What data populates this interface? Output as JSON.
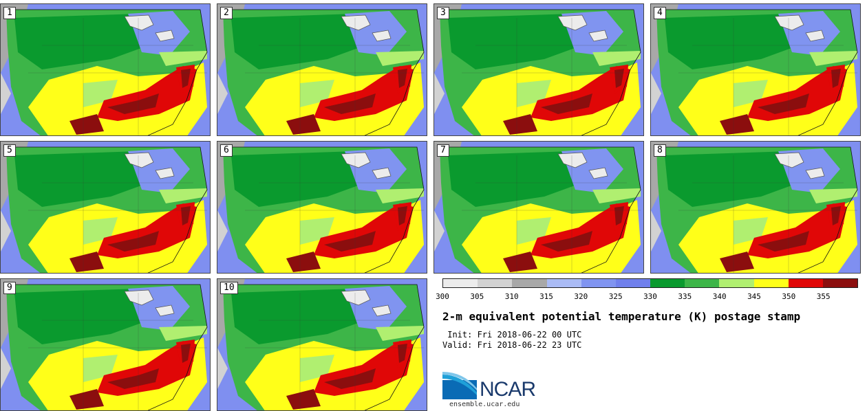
{
  "stamps": [
    {
      "label": "1"
    },
    {
      "label": "2"
    },
    {
      "label": "3"
    },
    {
      "label": "4"
    },
    {
      "label": "5"
    },
    {
      "label": "6"
    },
    {
      "label": "7"
    },
    {
      "label": "8"
    },
    {
      "label": "9"
    },
    {
      "label": "10"
    }
  ],
  "colorbar": {
    "colors": [
      "#ececec",
      "#d2d2d2",
      "#a8a8a8",
      "#aabbf5",
      "#8094f0",
      "#7080ec",
      "#0a9a2e",
      "#3db548",
      "#b0ef70",
      "#ffff19",
      "#e00707",
      "#8b0e0e"
    ],
    "ticks": [
      "300",
      "305",
      "310",
      "315",
      "320",
      "325",
      "330",
      "335",
      "340",
      "345",
      "350",
      "355"
    ]
  },
  "title": "2-m equivalent potential temperature (K) postage stamp",
  "init": " Init: Fri 2018-06-22 00 UTC",
  "valid": "Valid: Fri 2018-06-22 23 UTC",
  "logo": {
    "text": "NCAR",
    "url": "ensemble.ucar.edu"
  }
}
